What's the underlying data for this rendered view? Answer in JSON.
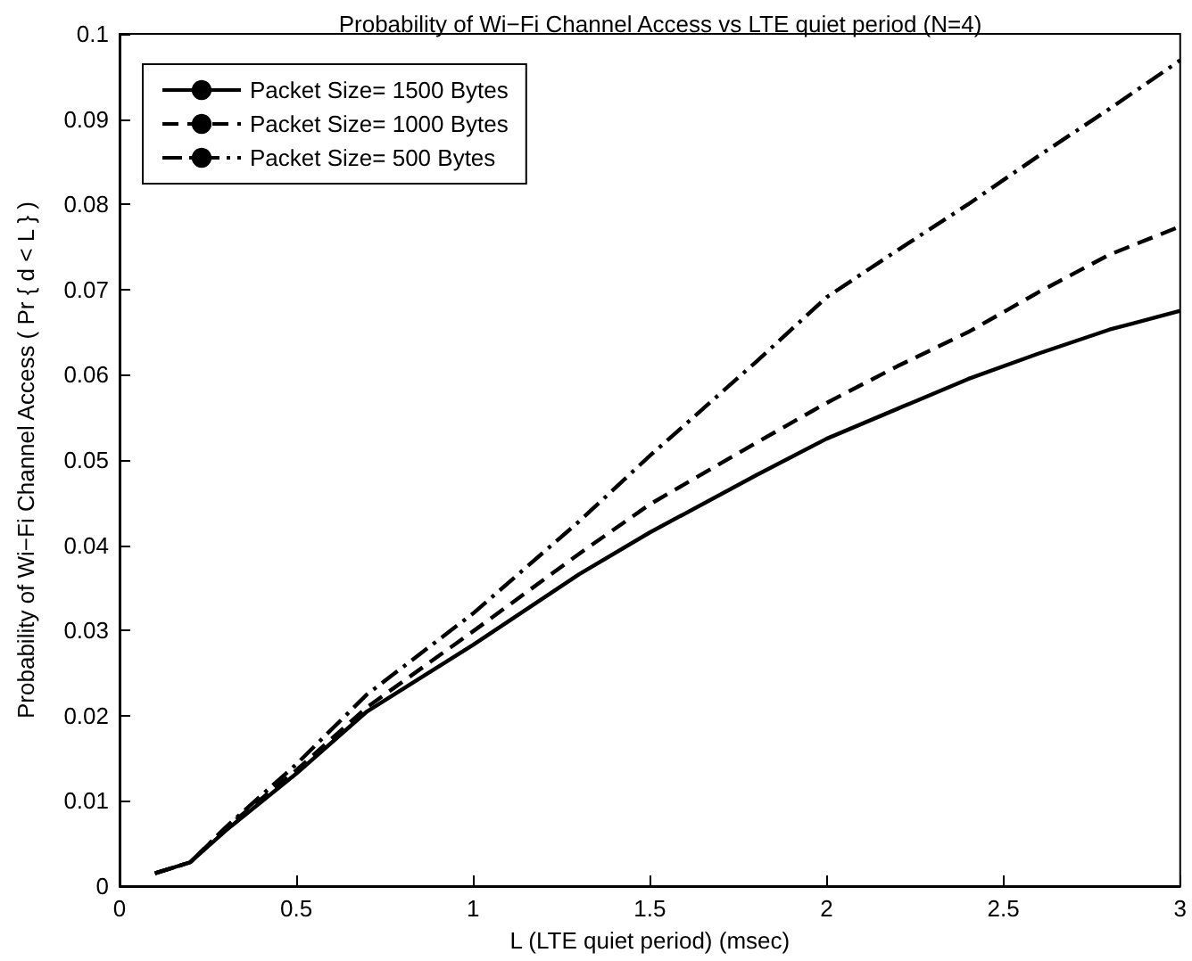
{
  "chart_data": {
    "type": "line",
    "title": "Probability of Wi−Fi Channel Access vs LTE quiet period (N=4)",
    "xlabel": "L (LTE quiet period) (msec)",
    "ylabel": "Probability of Wi−Fi Channel Access ( Pr { d < L } )",
    "x": [
      0.1,
      0.2,
      0.3,
      0.5,
      0.7,
      1,
      1.3,
      1.5,
      1.8,
      2,
      2.2,
      2.4,
      2.6,
      2.8,
      3
    ],
    "series": [
      {
        "name": "Packet Size= 1500 Bytes",
        "color": "#000000",
        "line_style": "solid",
        "values": [
          0.0015,
          0.0028,
          0.0065,
          0.0132,
          0.0205,
          0.0283,
          0.0366,
          0.0415,
          0.0482,
          0.0525,
          0.056,
          0.0595,
          0.0625,
          0.0653,
          0.0675
        ]
      },
      {
        "name": "Packet Size= 1000 Bytes",
        "color": "#000000",
        "line_style": "dashed",
        "values": [
          0.0015,
          0.0028,
          0.0068,
          0.0136,
          0.021,
          0.0299,
          0.039,
          0.0448,
          0.052,
          0.0567,
          0.061,
          0.065,
          0.0697,
          0.0741,
          0.0774
        ]
      },
      {
        "name": "Packet Size= 500 Bytes",
        "color": "#000000",
        "line_style": "dashdot",
        "values": [
          0.0015,
          0.0028,
          0.0069,
          0.0143,
          0.0225,
          0.032,
          0.0428,
          0.0505,
          0.0615,
          0.0691,
          0.0746,
          0.08,
          0.0857,
          0.0912,
          0.0969
        ]
      }
    ],
    "xlim": [
      0,
      3
    ],
    "xticks": [
      0,
      0.5,
      1,
      1.5,
      2,
      2.5,
      3
    ],
    "ylim": [
      0,
      0.1
    ],
    "yticks": [
      0,
      0.01,
      0.02,
      0.03,
      0.04,
      0.05,
      0.06,
      0.07,
      0.08,
      0.09,
      0.1
    ],
    "grid": false,
    "legend": "top left",
    "marker": "none"
  }
}
